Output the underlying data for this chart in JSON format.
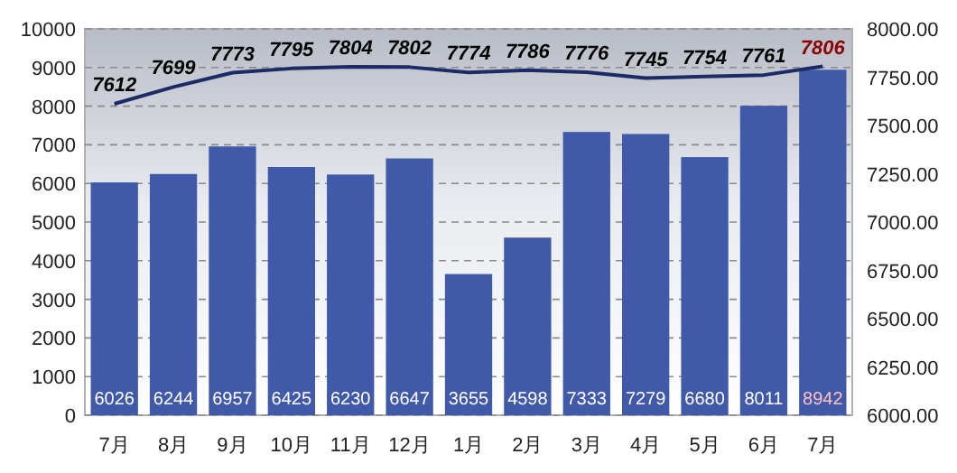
{
  "chart_data": {
    "type": "bar",
    "categories": [
      "7月",
      "8月",
      "9月",
      "10月",
      "11月",
      "12月",
      "1月",
      "2月",
      "3月",
      "4月",
      "5月",
      "6月",
      "7月"
    ],
    "series": [
      {
        "color": "#4059a9",
        "values": [
          6026,
          6244,
          6957,
          6425,
          6230,
          6647,
          3655,
          4598,
          7333,
          7279,
          6680,
          8011,
          8942
        ]
      },
      {
        "type": "line",
        "axis": "y2",
        "color": "#1c2a66",
        "values": [
          7612,
          7699,
          7773,
          7795,
          7804,
          7802,
          7774,
          7786,
          7776,
          7745,
          7754,
          7761,
          7806
        ]
      }
    ],
    "ylim": [
      0,
      10000
    ],
    "yticks": [
      0,
      1000,
      2000,
      3000,
      4000,
      5000,
      6000,
      7000,
      8000,
      9000,
      10000
    ],
    "y2lim": [
      6000,
      8000
    ],
    "y2ticks": [
      {
        "value": 6000,
        "label": "6000.00"
      },
      {
        "value": 6250,
        "label": "6250.00"
      },
      {
        "value": 6500,
        "label": "6500.00"
      },
      {
        "value": 6750,
        "label": "6750.00"
      },
      {
        "value": 7000,
        "label": "7000.00"
      },
      {
        "value": 7250,
        "label": "7250.00"
      },
      {
        "value": 7500,
        "label": "7500.00"
      },
      {
        "value": 7750,
        "label": "7750.00"
      },
      {
        "value": 8000,
        "label": "8000.00"
      }
    ],
    "grid": "y",
    "data_labels": true
  }
}
